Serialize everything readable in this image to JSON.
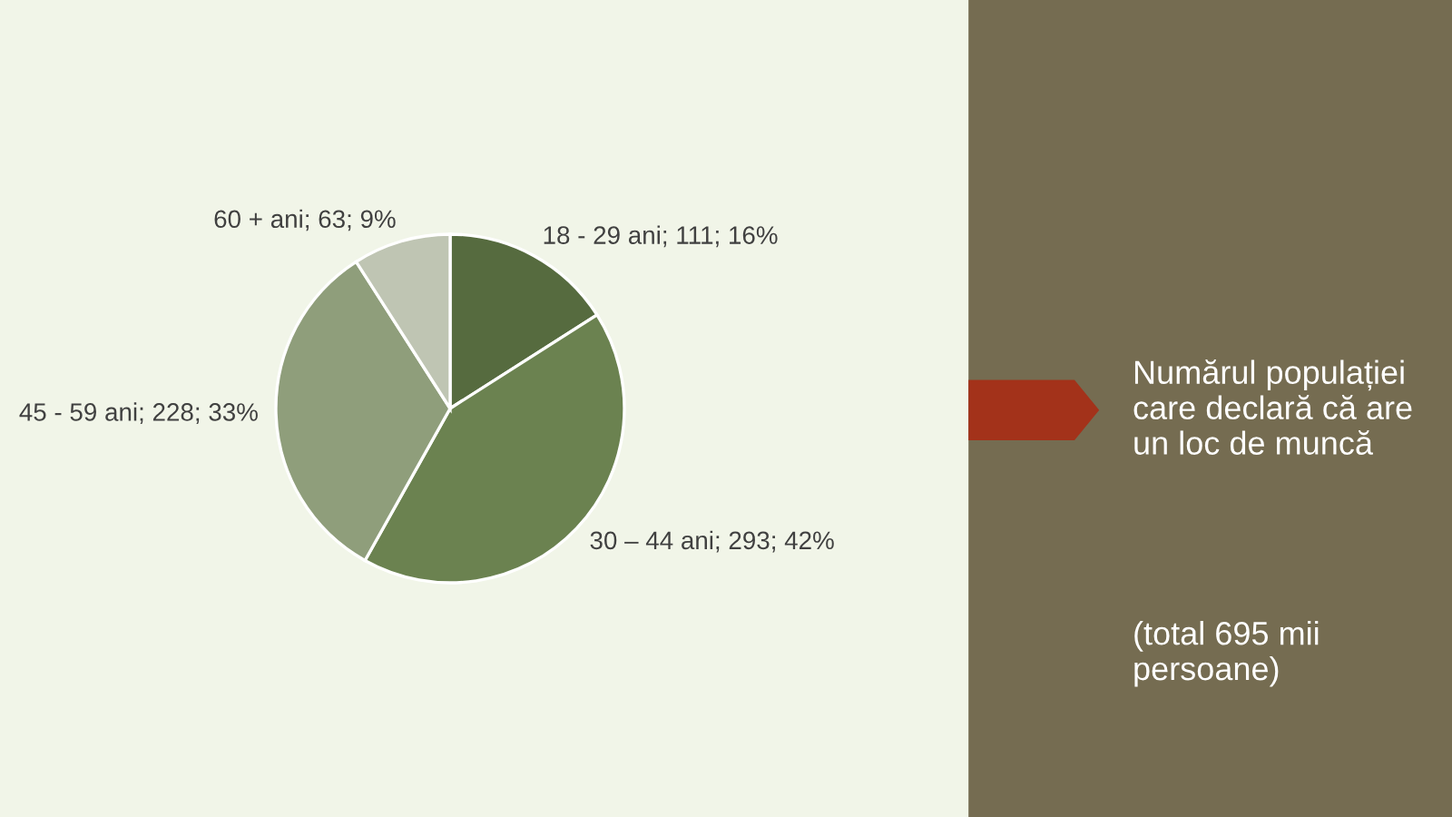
{
  "chart_data": {
    "type": "pie",
    "title": "Numărul populației care declară că are un loc de muncă",
    "annotations": [
      "(total 695 mii persoane)"
    ],
    "categories": [
      "18 - 29 ani",
      "30 – 44 ani",
      "45 - 59 ani",
      "60 + ani"
    ],
    "values": [
      111,
      293,
      228,
      63
    ],
    "value_labels": [
      "111; 16%",
      "293; 42%",
      "228; 33%",
      "63; 9%"
    ],
    "colors": [
      "#566b3f",
      "#6b8250",
      "#8f9e7b",
      "#bfc5b3"
    ],
    "legend": false
  }
}
